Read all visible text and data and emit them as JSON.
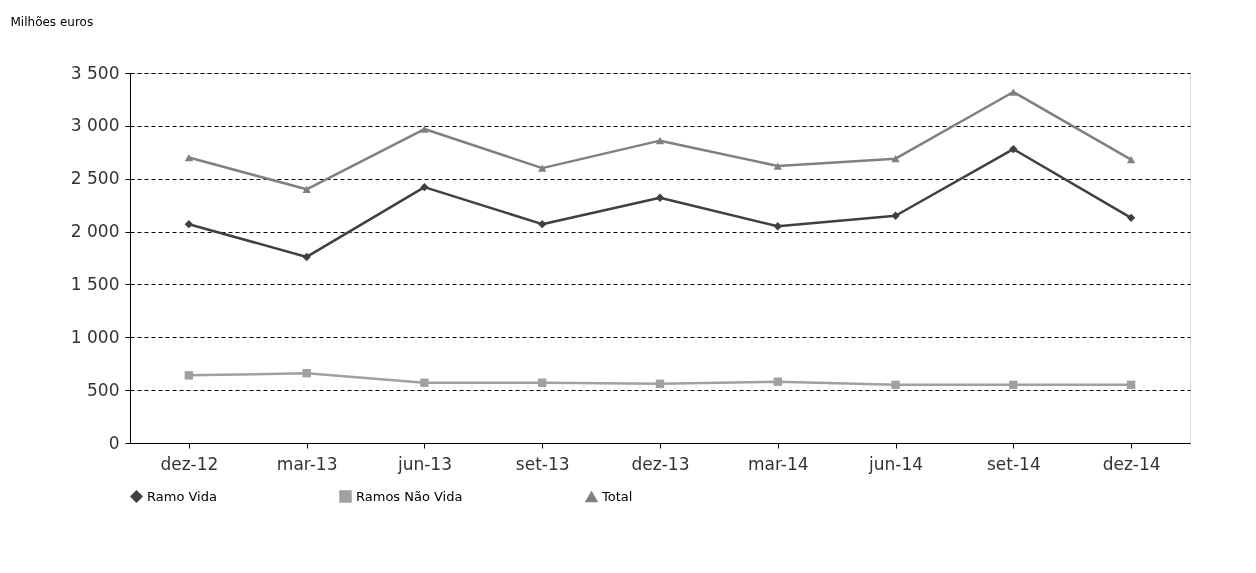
{
  "chart_data": {
    "type": "line",
    "ylabel": "Milhões euros",
    "categories": [
      "dez-12",
      "mar-13",
      "jun-13",
      "set-13",
      "dez-13",
      "mar-14",
      "jun-14",
      "set-14",
      "dez-14"
    ],
    "series": [
      {
        "name": "Ramo Vida",
        "color": "#404040",
        "marker": "diamond",
        "values": [
          2070,
          1760,
          2420,
          2070,
          2320,
          2050,
          2150,
          2780,
          2130
        ]
      },
      {
        "name": "Ramos Não Vida",
        "color": "#a0a0a0",
        "marker": "square",
        "values": [
          640,
          660,
          570,
          570,
          560,
          580,
          550,
          550,
          550
        ]
      },
      {
        "name": "Total",
        "color": "#808080",
        "marker": "triangle",
        "values": [
          2700,
          2400,
          2970,
          2600,
          2860,
          2620,
          2690,
          3320,
          2680
        ]
      }
    ],
    "ylim": [
      0,
      3500
    ],
    "yticks": [
      0,
      500,
      {
        "value": 1000,
        "label": "1 000"
      },
      {
        "value": 1500,
        "label": "1 500"
      },
      {
        "value": 2000,
        "label": "2 000"
      },
      {
        "value": 2500,
        "label": "2 500"
      },
      {
        "value": 3000,
        "label": "3 000"
      },
      {
        "value": 3500,
        "label": "3 500"
      }
    ],
    "grid": "y",
    "legend": "bottom",
    "line_style": "solid"
  }
}
